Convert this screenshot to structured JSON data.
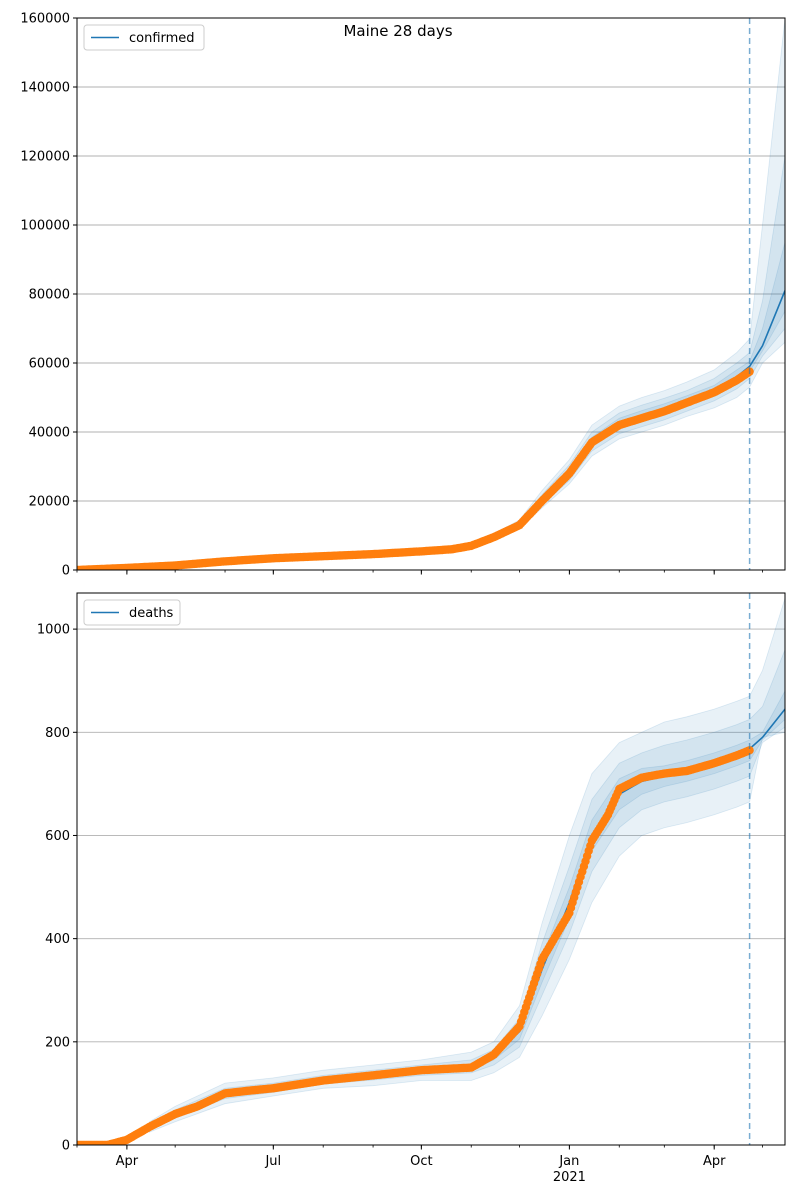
{
  "title": "Maine 28 days",
  "colors": {
    "model_line": "#1f77b4",
    "observed": "#ff7f0e",
    "band": "#1f77b4",
    "grid": "#b0b0b0",
    "forecast_line": "#1f77b4"
  },
  "x_axis": {
    "date_start": "2020-03-01",
    "date_end": "2021-05-15",
    "forecast_start": "2021-04-23",
    "tick_labels": [
      {
        "date": "2020-04-01",
        "label": "Apr"
      },
      {
        "date": "2020-07-01",
        "label": "Jul"
      },
      {
        "date": "2020-10-01",
        "label": "Oct"
      },
      {
        "date": "2021-01-01",
        "label": "Jan",
        "sublabel": "2021"
      },
      {
        "date": "2021-04-01",
        "label": "Apr"
      }
    ]
  },
  "chart_data": [
    {
      "type": "line",
      "legend": "confirmed",
      "legend_position": "top-left",
      "ylim": [
        0,
        160000
      ],
      "yticks": [
        0,
        20000,
        40000,
        60000,
        80000,
        100000,
        120000,
        140000,
        160000
      ],
      "grid": true,
      "series": [
        {
          "name": "confirmed",
          "x": [
            "2020-03-01",
            "2020-04-01",
            "2020-05-01",
            "2020-06-01",
            "2020-07-01",
            "2020-08-01",
            "2020-09-01",
            "2020-10-01",
            "2020-10-20",
            "2020-11-01",
            "2020-11-15",
            "2020-12-01",
            "2020-12-15",
            "2021-01-01",
            "2021-01-15",
            "2021-02-01",
            "2021-02-15",
            "2021-03-01",
            "2021-03-15",
            "2021-04-01",
            "2021-04-15",
            "2021-04-23",
            "2021-05-01",
            "2021-05-15"
          ],
          "y": [
            0,
            600,
            1300,
            2500,
            3400,
            4000,
            4600,
            5400,
            6000,
            7000,
            9500,
            13000,
            20000,
            28000,
            37000,
            42500,
            44500,
            46500,
            49000,
            52000,
            56000,
            59000,
            65000,
            81000
          ]
        }
      ],
      "observed": {
        "x": [
          "2020-03-01",
          "2020-04-01",
          "2020-05-01",
          "2020-06-01",
          "2020-07-01",
          "2020-08-01",
          "2020-09-01",
          "2020-10-01",
          "2020-10-20",
          "2020-11-01",
          "2020-11-15",
          "2020-12-01",
          "2020-12-15",
          "2021-01-01",
          "2021-01-15",
          "2021-02-01",
          "2021-02-15",
          "2021-03-01",
          "2021-03-15",
          "2021-04-01",
          "2021-04-15",
          "2021-04-23"
        ],
        "y": [
          0,
          600,
          1300,
          2500,
          3400,
          4000,
          4600,
          5400,
          6000,
          7000,
          9500,
          13000,
          20000,
          28000,
          37000,
          42000,
          44000,
          46000,
          48500,
          51500,
          55000,
          57500
        ]
      },
      "bands": [
        {
          "x": [
            "2020-11-15",
            "2020-12-01",
            "2020-12-15",
            "2021-01-01",
            "2021-01-15",
            "2021-02-01",
            "2021-02-15",
            "2021-03-01",
            "2021-03-15",
            "2021-04-01",
            "2021-04-15",
            "2021-04-23",
            "2021-05-01",
            "2021-05-15"
          ],
          "lower": [
            9000,
            12000,
            18000,
            25000,
            33000,
            38000,
            40000,
            42000,
            44500,
            47000,
            50000,
            53000,
            60000,
            66000
          ],
          "upper": [
            10500,
            14500,
            23000,
            32000,
            42000,
            47500,
            50000,
            52000,
            54500,
            58000,
            63000,
            67000,
            100000,
            160000
          ]
        },
        {
          "x": [
            "2020-11-15",
            "2020-12-01",
            "2020-12-15",
            "2021-01-01",
            "2021-01-15",
            "2021-02-01",
            "2021-02-15",
            "2021-03-01",
            "2021-03-15",
            "2021-04-01",
            "2021-04-15",
            "2021-04-23",
            "2021-05-01",
            "2021-05-15"
          ],
          "lower": [
            9200,
            12400,
            18800,
            26000,
            34500,
            39500,
            41500,
            43500,
            46000,
            49000,
            52500,
            55500,
            62000,
            70000
          ],
          "upper": [
            10000,
            13800,
            21800,
            30500,
            40000,
            45500,
            47800,
            49800,
            52000,
            55500,
            60000,
            63000,
            78000,
            120000
          ]
        },
        {
          "x": [
            "2020-11-15",
            "2020-12-01",
            "2020-12-15",
            "2021-01-01",
            "2021-01-15",
            "2021-02-01",
            "2021-02-15",
            "2021-03-01",
            "2021-03-15",
            "2021-04-01",
            "2021-04-15",
            "2021-04-23",
            "2021-05-01",
            "2021-05-15"
          ],
          "lower": [
            9400,
            12700,
            19400,
            27000,
            35700,
            41000,
            43000,
            45000,
            47500,
            50500,
            54500,
            57500,
            63500,
            75000
          ],
          "upper": [
            9700,
            13300,
            20700,
            29200,
            38500,
            44000,
            46200,
            48200,
            50500,
            53500,
            58000,
            60500,
            70000,
            95000
          ]
        }
      ]
    },
    {
      "type": "line",
      "legend": "deaths",
      "legend_position": "top-left",
      "ylim": [
        0,
        1070
      ],
      "yticks": [
        0,
        200,
        400,
        600,
        800,
        1000
      ],
      "grid": true,
      "series": [
        {
          "name": "deaths",
          "x": [
            "2020-03-01",
            "2020-03-20",
            "2020-04-01",
            "2020-04-15",
            "2020-05-01",
            "2020-05-15",
            "2020-06-01",
            "2020-06-15",
            "2020-07-01",
            "2020-08-01",
            "2020-09-01",
            "2020-10-01",
            "2020-11-01",
            "2020-11-15",
            "2020-12-01",
            "2020-12-15",
            "2021-01-01",
            "2021-01-15",
            "2021-02-01",
            "2021-02-15",
            "2021-03-01",
            "2021-03-15",
            "2021-04-01",
            "2021-04-15",
            "2021-04-23",
            "2021-05-01",
            "2021-05-15"
          ],
          "y": [
            0,
            0,
            10,
            35,
            60,
            75,
            100,
            105,
            110,
            125,
            135,
            145,
            150,
            175,
            220,
            340,
            470,
            600,
            680,
            705,
            715,
            725,
            740,
            755,
            768,
            790,
            845
          ]
        }
      ],
      "observed": {
        "x": [
          "2020-03-01",
          "2020-03-20",
          "2020-04-01",
          "2020-04-15",
          "2020-05-01",
          "2020-05-15",
          "2020-06-01",
          "2020-06-15",
          "2020-07-01",
          "2020-08-01",
          "2020-09-01",
          "2020-10-01",
          "2020-11-01",
          "2020-11-15",
          "2020-12-01",
          "2020-12-15",
          "2021-01-01",
          "2021-01-15",
          "2021-01-25",
          "2021-02-01",
          "2021-02-15",
          "2021-03-01",
          "2021-03-15",
          "2021-04-01",
          "2021-04-15",
          "2021-04-23"
        ],
        "y": [
          0,
          0,
          10,
          35,
          60,
          75,
          100,
          105,
          110,
          125,
          135,
          145,
          150,
          175,
          230,
          360,
          450,
          590,
          640,
          690,
          712,
          720,
          725,
          740,
          755,
          765
        ]
      },
      "bands": [
        {
          "x": [
            "2020-04-15",
            "2020-05-01",
            "2020-06-01",
            "2020-07-01",
            "2020-08-01",
            "2020-09-01",
            "2020-10-01",
            "2020-11-01",
            "2020-11-15",
            "2020-12-01",
            "2020-12-15",
            "2021-01-01",
            "2021-01-15",
            "2021-02-01",
            "2021-02-15",
            "2021-03-01",
            "2021-03-15",
            "2021-04-01",
            "2021-04-15",
            "2021-04-23",
            "2021-05-01",
            "2021-05-15"
          ],
          "lower": [
            25,
            45,
            80,
            95,
            110,
            115,
            125,
            125,
            140,
            170,
            250,
            360,
            470,
            560,
            600,
            615,
            625,
            640,
            655,
            665,
            790,
            800
          ],
          "upper": [
            45,
            75,
            120,
            130,
            145,
            155,
            165,
            180,
            200,
            270,
            430,
            600,
            720,
            780,
            800,
            820,
            830,
            845,
            860,
            870,
            920,
            1060
          ]
        },
        {
          "x": [
            "2020-04-15",
            "2020-05-01",
            "2020-06-01",
            "2020-07-01",
            "2020-08-01",
            "2020-09-01",
            "2020-10-01",
            "2020-11-01",
            "2020-11-15",
            "2020-12-01",
            "2020-12-15",
            "2021-01-01",
            "2021-01-15",
            "2021-02-01",
            "2021-02-15",
            "2021-03-01",
            "2021-03-15",
            "2021-04-01",
            "2021-04-15",
            "2021-04-23",
            "2021-05-01",
            "2021-05-15"
          ],
          "lower": [
            30,
            52,
            90,
            102,
            118,
            126,
            135,
            140,
            155,
            190,
            290,
            410,
            530,
            615,
            650,
            665,
            675,
            690,
            705,
            715,
            780,
            810
          ],
          "upper": [
            40,
            68,
            110,
            120,
            135,
            145,
            155,
            165,
            185,
            245,
            390,
            540,
            670,
            740,
            760,
            775,
            785,
            800,
            815,
            825,
            850,
            960
          ]
        },
        {
          "x": [
            "2020-04-15",
            "2020-05-01",
            "2020-06-01",
            "2020-07-01",
            "2020-08-01",
            "2020-09-01",
            "2020-10-01",
            "2020-11-01",
            "2020-11-15",
            "2020-12-01",
            "2020-12-15",
            "2021-01-01",
            "2021-01-15",
            "2021-02-01",
            "2021-02-15",
            "2021-03-01",
            "2021-03-15",
            "2021-04-01",
            "2021-04-15",
            "2021-04-23",
            "2021-05-01",
            "2021-05-15"
          ],
          "lower": [
            33,
            56,
            95,
            106,
            122,
            131,
            141,
            146,
            165,
            205,
            315,
            440,
            570,
            650,
            680,
            695,
            705,
            720,
            735,
            745,
            785,
            825
          ],
          "upper": [
            37,
            64,
            105,
            114,
            128,
            139,
            149,
            156,
            180,
            235,
            365,
            500,
            630,
            710,
            730,
            735,
            745,
            760,
            775,
            785,
            800,
            880
          ]
        }
      ]
    }
  ]
}
